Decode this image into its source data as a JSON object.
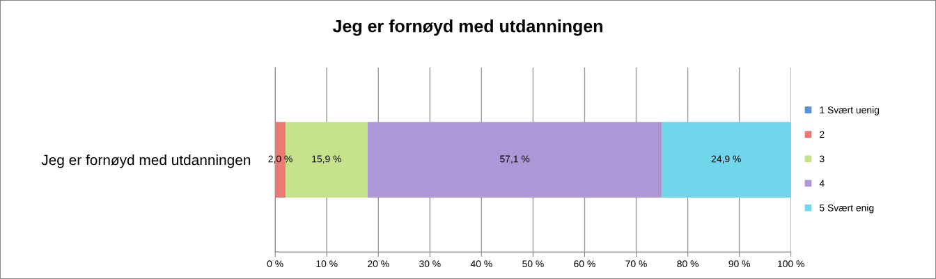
{
  "chart_data": {
    "type": "bar",
    "orientation": "horizontal",
    "stacked": true,
    "title": "Jeg er fornøyd med utdanningen",
    "categories": [
      "Jeg er fornøyd med utdanningen"
    ],
    "series": [
      {
        "name": "1 Svært uenig",
        "color": "#5b8fd6",
        "values": [
          0.0
        ],
        "value_labels": [
          null
        ]
      },
      {
        "name": "2",
        "color": "#ec7a74",
        "values": [
          2.0
        ],
        "value_labels": [
          "2,0 %"
        ]
      },
      {
        "name": "3",
        "color": "#c6e28a",
        "values": [
          15.9
        ],
        "value_labels": [
          "15,9 %"
        ]
      },
      {
        "name": "4",
        "color": "#ae97d6",
        "values": [
          57.1
        ],
        "value_labels": [
          "57,1 %"
        ]
      },
      {
        "name": "5 Svært enig",
        "color": "#6fd6ec",
        "values": [
          24.9
        ],
        "value_labels": [
          "24,9 %"
        ]
      }
    ],
    "xlim": [
      0,
      100
    ],
    "xticks": [
      {
        "value": 0,
        "label": "0 %"
      },
      {
        "value": 10,
        "label": "10 %"
      },
      {
        "value": 20,
        "label": "20 %"
      },
      {
        "value": 30,
        "label": "30 %"
      },
      {
        "value": 40,
        "label": "40 %"
      },
      {
        "value": 50,
        "label": "50 %"
      },
      {
        "value": 60,
        "label": "60 %"
      },
      {
        "value": 70,
        "label": "70 %"
      },
      {
        "value": 80,
        "label": "80 %"
      },
      {
        "value": 90,
        "label": "90 %"
      },
      {
        "value": 100,
        "label": "100 %"
      }
    ],
    "grid": "x",
    "legend": "right"
  }
}
